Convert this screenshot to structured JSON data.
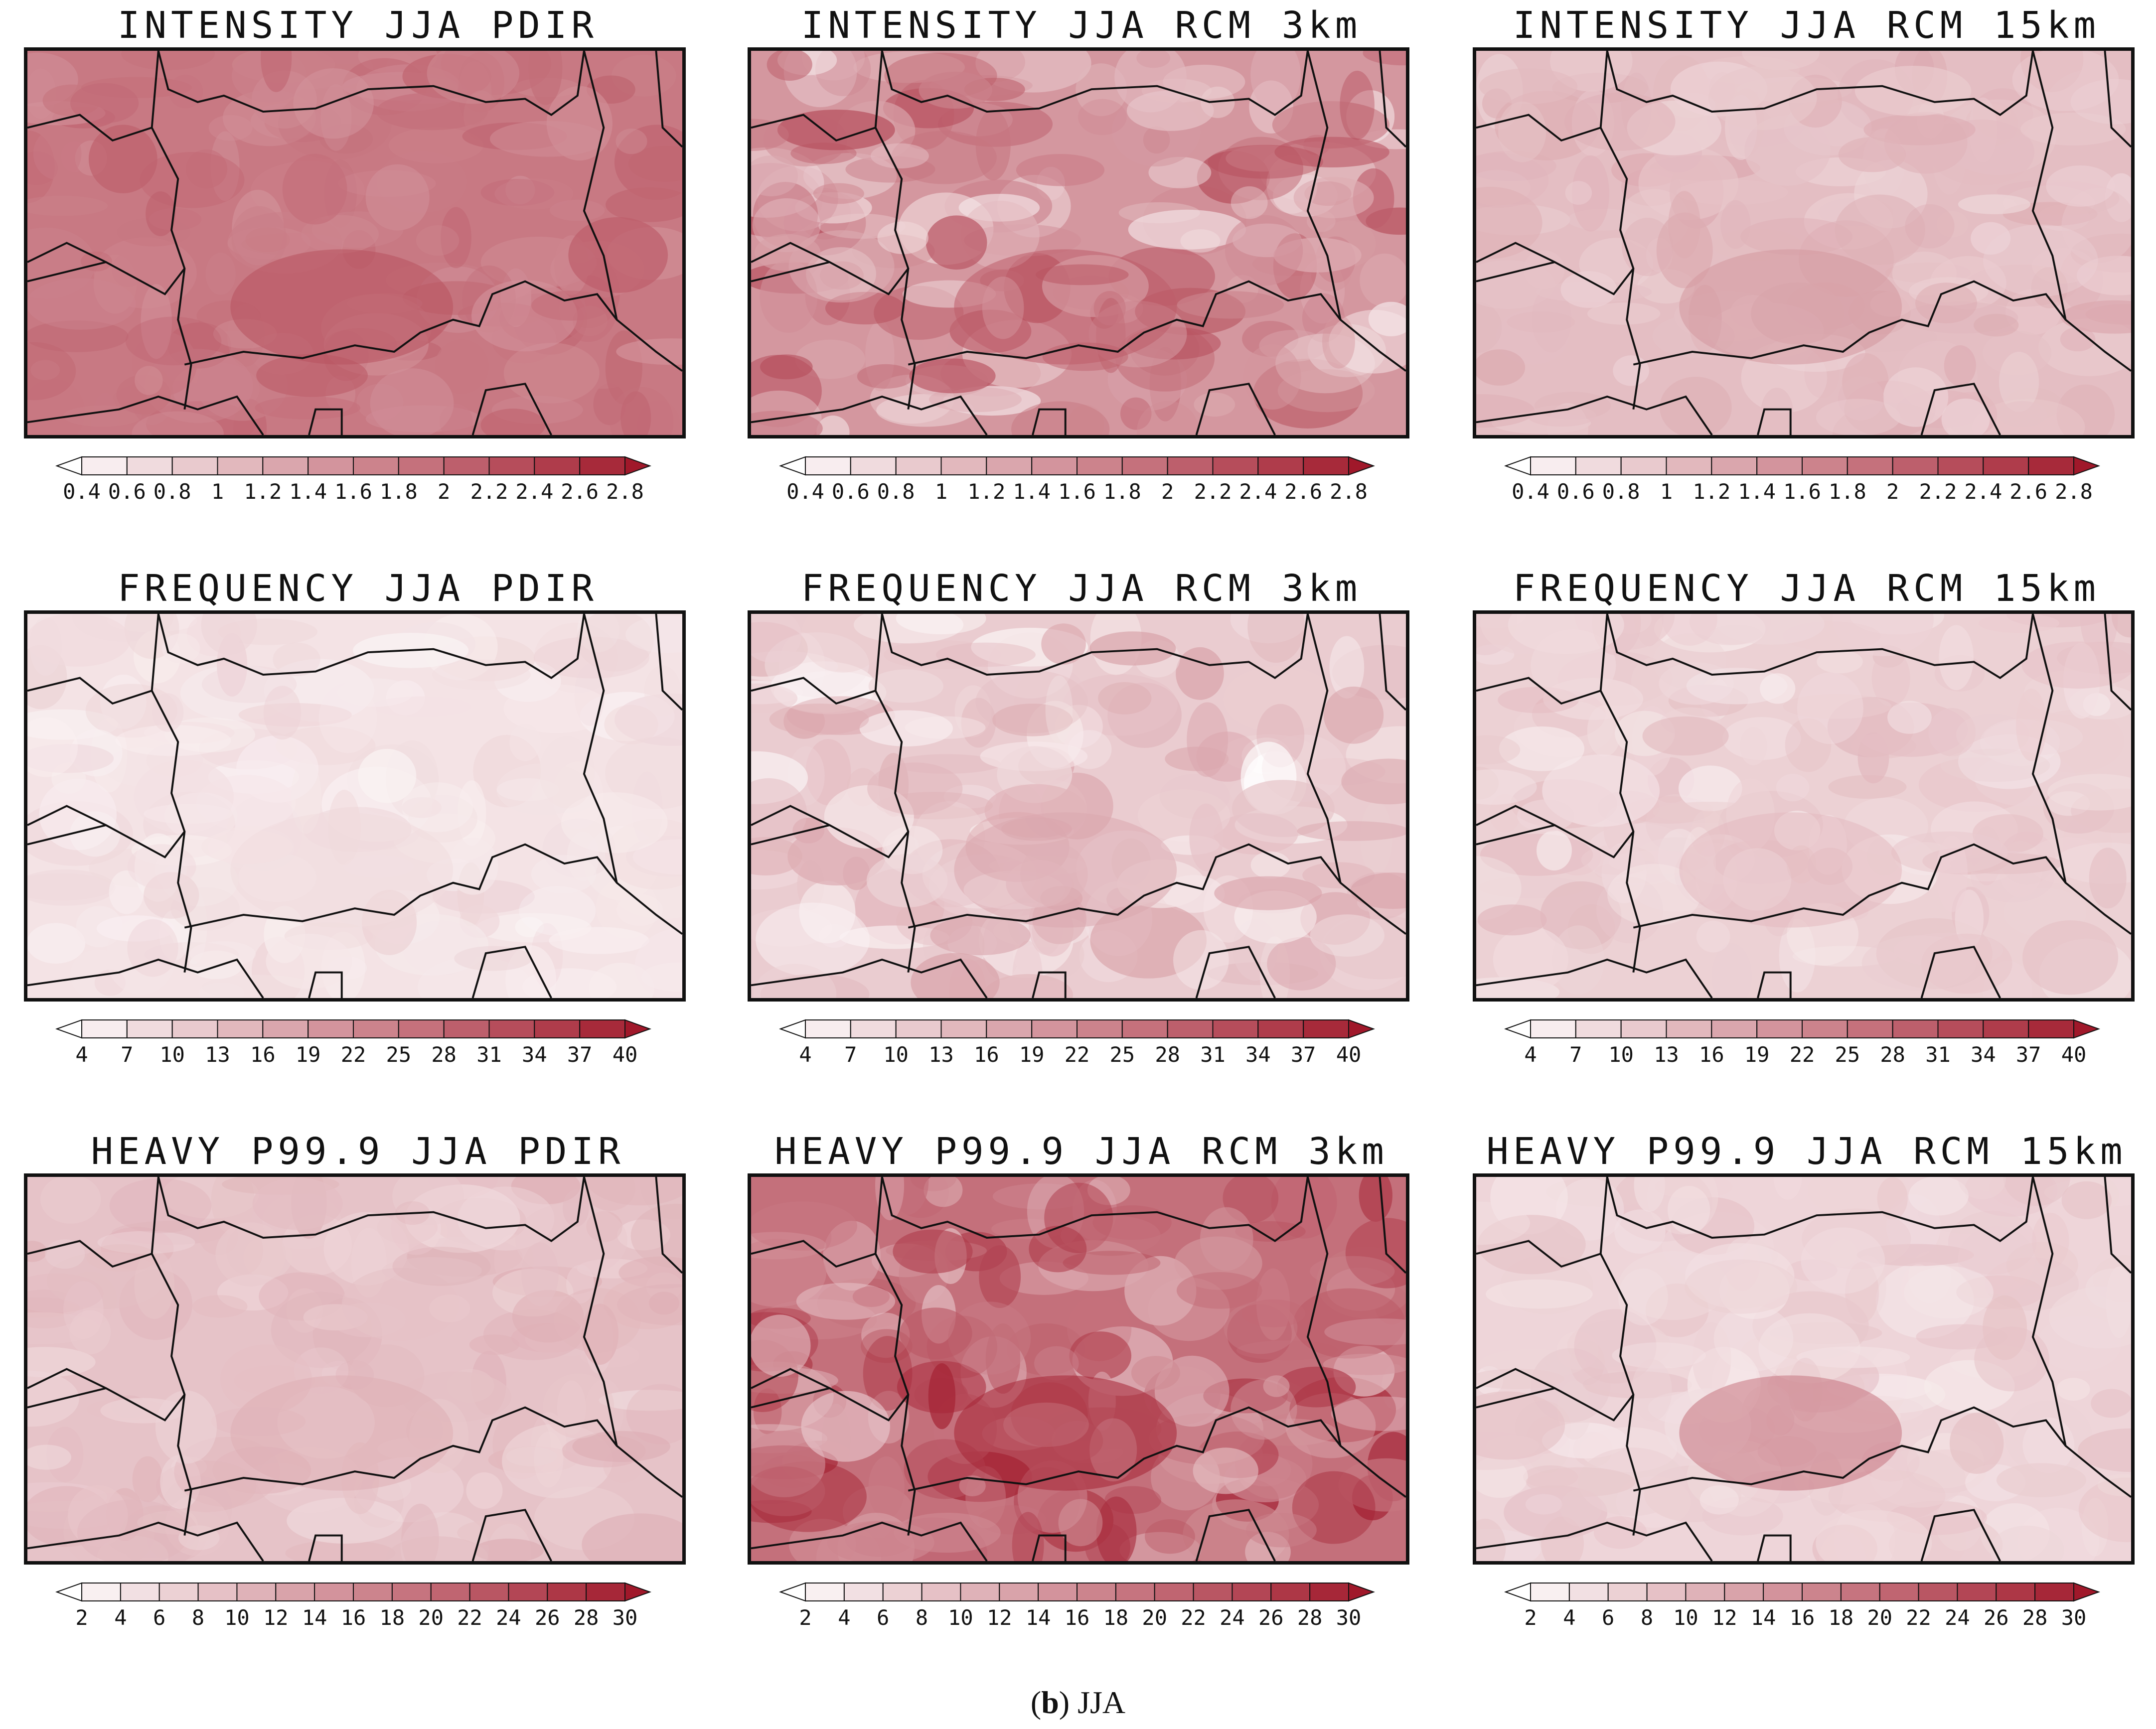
{
  "figure": {
    "caption_letter": "b",
    "caption_text": ") JJA",
    "caption_open": "("
  },
  "colors": {
    "low": "#ffffff",
    "high": "#a0182a",
    "border": "#111111"
  },
  "scales": {
    "intensity": [
      "0.4",
      "0.6",
      "0.8",
      "1",
      "1.2",
      "1.4",
      "1.6",
      "1.8",
      "2",
      "2.2",
      "2.4",
      "2.6",
      "2.8"
    ],
    "frequency": [
      "4",
      "7",
      "10",
      "13",
      "16",
      "19",
      "22",
      "25",
      "28",
      "31",
      "34",
      "37",
      "40"
    ],
    "heavy": [
      "2",
      "4",
      "6",
      "8",
      "10",
      "12",
      "14",
      "16",
      "18",
      "20",
      "22",
      "24",
      "26",
      "28",
      "30"
    ]
  },
  "panels": [
    {
      "title": "INTENSITY JJA PDIR",
      "scale": "intensity",
      "level": 0.58,
      "variance": 0.12,
      "hotspot": 0.75
    },
    {
      "title": "INTENSITY JJA RCM 3km",
      "scale": "intensity",
      "level": 0.45,
      "variance": 0.35,
      "hotspot": 0.7
    },
    {
      "title": "INTENSITY JJA RCM 15km",
      "scale": "intensity",
      "level": 0.28,
      "variance": 0.1,
      "hotspot": 0.45
    },
    {
      "title": "FREQUENCY JJA PDIR",
      "scale": "frequency",
      "level": 0.12,
      "variance": 0.08,
      "hotspot": 0.15
    },
    {
      "title": "FREQUENCY JJA RCM 3km",
      "scale": "frequency",
      "level": 0.22,
      "variance": 0.22,
      "hotspot": 0.38
    },
    {
      "title": "FREQUENCY JJA RCM 15km",
      "scale": "frequency",
      "level": 0.2,
      "variance": 0.12,
      "hotspot": 0.3
    },
    {
      "title": "HEAVY P99.9 JJA PDIR",
      "scale": "heavy",
      "level": 0.26,
      "variance": 0.1,
      "hotspot": 0.35
    },
    {
      "title": "HEAVY P99.9 JJA RCM 3km",
      "scale": "heavy",
      "level": 0.62,
      "variance": 0.4,
      "hotspot": 0.95
    },
    {
      "title": "HEAVY P99.9 JJA RCM 15km",
      "scale": "heavy",
      "level": 0.18,
      "variance": 0.1,
      "hotspot": 0.6
    }
  ]
}
